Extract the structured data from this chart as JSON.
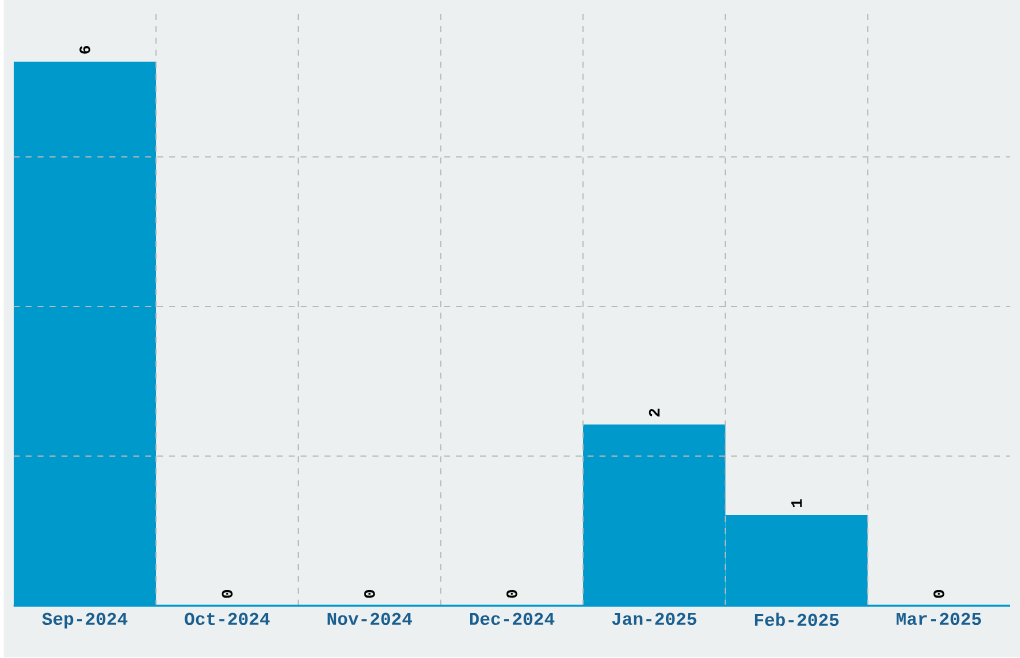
{
  "chart_data": {
    "type": "bar",
    "categories": [
      "Sep-2024",
      "Oct-2024",
      "Nov-2024",
      "Dec-2024",
      "Jan-2025",
      "Feb-2025",
      "Mar-2025"
    ],
    "values": [
      6,
      0,
      0,
      0,
      2,
      1,
      0
    ],
    "color": "#0099cc",
    "ylim": [
      0,
      6.57
    ],
    "yticks": [
      {
        "value": 1.65,
        "label": null
      },
      {
        "value": 3.3,
        "label": null
      },
      {
        "value": 4.95,
        "label": null
      }
    ],
    "tick_labels": "x",
    "grid": true,
    "data_labels": true
  }
}
